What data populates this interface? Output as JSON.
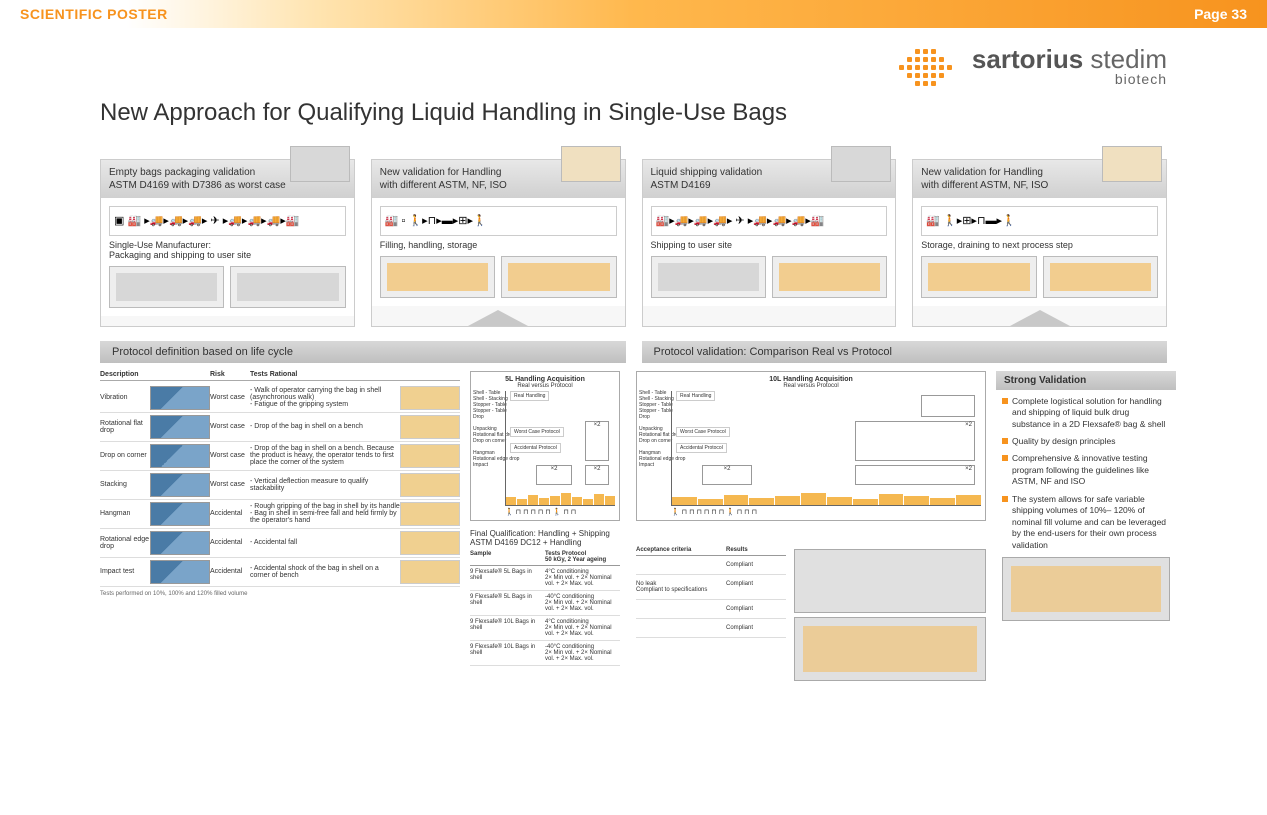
{
  "topbar": {
    "left": "SCIENTIFIC POSTER",
    "right": "Page 33"
  },
  "logo": {
    "main_bold": "sartorius",
    "main_light": " stedim",
    "sub": "biotech"
  },
  "title": "New Approach for Qualifying Liquid Handling in Single-Use Bags",
  "cards": [
    {
      "hdr": "Empty bags packaging validation\nASTM D4169 with D7386 as worst case",
      "caption": "Single-Use Manufacturer:\nPackaging and shipping to user site",
      "img_class": "grey"
    },
    {
      "hdr": "New validation for Handling\nwith different ASTM, NF, ISO",
      "caption": "Filling, handling, storage",
      "img_class": ""
    },
    {
      "hdr": "Liquid shipping validation\nASTM D4169",
      "caption": "Shipping to user site",
      "img_class": "grey"
    },
    {
      "hdr": "New validation for Handling\nwith different ASTM, NF, ISO",
      "caption": "Storage, draining to next process step",
      "img_class": ""
    }
  ],
  "section_left": "Protocol definition based on life cycle",
  "section_right": "Protocol validation: Comparison Real vs Protocol",
  "tbl_hdr": {
    "c1": "Description",
    "c2": "",
    "c3": "Risk",
    "c4": "Tests Rational",
    "c5": ""
  },
  "tbl_rows": [
    {
      "desc": "Vibration",
      "risk": "Worst case",
      "rat": "- Walk of operator carrying the bag in shell (asynchronous walk)\n- Fatigue of the gripping system"
    },
    {
      "desc": "Rotational flat drop",
      "risk": "Worst case",
      "rat": "- Drop of the bag in shell on a bench"
    },
    {
      "desc": "Drop on corner",
      "risk": "Worst case",
      "rat": "- Drop of the bag in shell on a bench. Because the product is heavy, the operator tends to first place the corner of the system"
    },
    {
      "desc": "Stacking",
      "risk": "Worst case",
      "rat": "- Vertical deflection measure to qualify stackability"
    },
    {
      "desc": "Hangman",
      "risk": "Accidental",
      "rat": "- Rough gripping of the bag in shell by its handle\n- Bag in shell in semi-free fall and held firmly by the operator's hand"
    },
    {
      "desc": "Rotational edge drop",
      "risk": "Accidental",
      "rat": "- Accidental fall"
    },
    {
      "desc": "Impact test",
      "risk": "Accidental",
      "rat": "- Accidental shock of the bag in shell on a corner of bench"
    }
  ],
  "tbl_note": "Tests performed on 10%, 100% and 120% filled volume",
  "chart1": {
    "title": "5L Handling Acquisition",
    "sub": "Real versus Protocol"
  },
  "chart2": {
    "title": "10L Handling Acquisition",
    "sub": "Real versus Protocol"
  },
  "chart_left_lbl1": "Shell - Table\nShell - Stacking\nStopper - Table\nStopper - Table\nDrop",
  "chart_left_lbl2": "Unpacking\nRotational flat drop\nDrop on corner",
  "chart_left_lbl3": "Hangman\nRotational edge drop\nImpact",
  "chart_lbl_a": "Real Handling",
  "chart_lbl_b": "Worst Case Protocol",
  "chart_lbl_c": "Accidental Protocol",
  "fq_title": "Final Qualification: Handling + Shipping ASTM D4169 DC12 + Handling",
  "fq_hdr": {
    "c1": "Sample",
    "c2": "Tests Protocol\n50 kGy, 2 Year ageing"
  },
  "fq_rows": [
    {
      "c1": "9 Flexsafe® 5L Bags in shell",
      "c2": "4°C conditioning\n2× Min vol. + 2× Nominal vol. + 2× Max. vol."
    },
    {
      "c1": "9 Flexsafe® 5L Bags in shell",
      "c2": "-40°C conditioning\n2× Min vol. + 2× Nominal vol. + 2× Max. vol."
    },
    {
      "c1": "9 Flexsafe® 10L Bags in shell",
      "c2": "4°C conditioning\n2× Min vol. + 2× Nominal vol. + 2× Max. vol."
    },
    {
      "c1": "9 Flexsafe® 10L Bags in shell",
      "c2": "-40°C conditioning\n2× Min vol. + 2× Nominal vol. + 2× Max. vol."
    }
  ],
  "acc_hdr": {
    "c1": "Acceptance criteria",
    "c2": "Results"
  },
  "acc_rows": [
    {
      "c1": "",
      "c2": "Compliant"
    },
    {
      "c1": "No leak\nCompliant to specifications",
      "c2": "Compliant"
    },
    {
      "c1": "",
      "c2": "Compliant"
    },
    {
      "c1": "",
      "c2": "Compliant"
    }
  ],
  "strong": {
    "hdr": "Strong Validation",
    "items": [
      "Complete logistical solution for handling and shipping of liquid bulk drug substance in a 2D Flexsafe® bag & shell",
      "Quality by design principles",
      "Comprehensive & innovative testing program following the guidelines like ASTM, NF and ISO",
      "The system allows for safe variable shipping volumes of 10%– 120% of nominal fill volume and can be leveraged by the end-users for their own process validation"
    ]
  },
  "colors": {
    "accent": "#f7931e",
    "grey_hdr": "#c8c8c8"
  }
}
